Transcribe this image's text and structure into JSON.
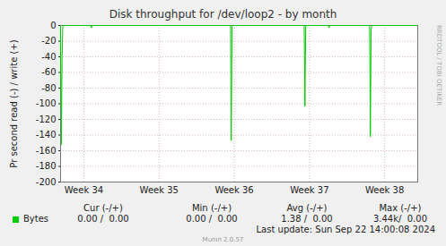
{
  "chart_data": {
    "type": "line",
    "title": "Disk throughput for /dev/loop2 - by month",
    "y_label": "Pr second read (-) / write (+)",
    "x": [
      33.69,
      33.7,
      33.71,
      33.72,
      34.09,
      34.1,
      34.11,
      35.95,
      35.96,
      35.97,
      36.93,
      36.94,
      36.95,
      37.25,
      37.26,
      37.27,
      37.8,
      37.81,
      37.82,
      37.83,
      38.44
    ],
    "series": [
      {
        "name": "Bytes",
        "color": "#00cc00",
        "values": [
          0,
          -152,
          -40,
          0,
          0,
          -3,
          0,
          0,
          -147,
          0,
          0,
          -103,
          0,
          0,
          -3,
          0,
          0,
          -142,
          -5,
          0,
          0
        ]
      }
    ],
    "xlim": [
      33.69,
      38.44
    ],
    "xticks": [
      {
        "value": 34,
        "label": "Week 34"
      },
      {
        "value": 35,
        "label": "Week 35"
      },
      {
        "value": 36,
        "label": "Week 36"
      },
      {
        "value": 37,
        "label": "Week 37"
      },
      {
        "value": 38,
        "label": "Week 38"
      }
    ],
    "ylim": [
      -200,
      0
    ],
    "yticks": [
      -200,
      -180,
      -160,
      -140,
      -120,
      -100,
      -80,
      -60,
      -40,
      -20,
      0
    ],
    "grid": true,
    "stats": {
      "columns": [
        "Cur (-/+)",
        "Min (-/+)",
        "Avg (-/+)",
        "Max (-/+)"
      ],
      "rows": [
        {
          "name": "Bytes",
          "values": [
            "0.00 /  0.00",
            "0.00 /  0.00",
            "1.38 /  0.00",
            "3.44k/  0.00"
          ]
        }
      ]
    },
    "last_update": "Last update: Sun Sep 22 14:00:08 2024",
    "footer": "Munin 2.0.57",
    "watermark": "RRDTOOL / TOBI OETIKER"
  }
}
